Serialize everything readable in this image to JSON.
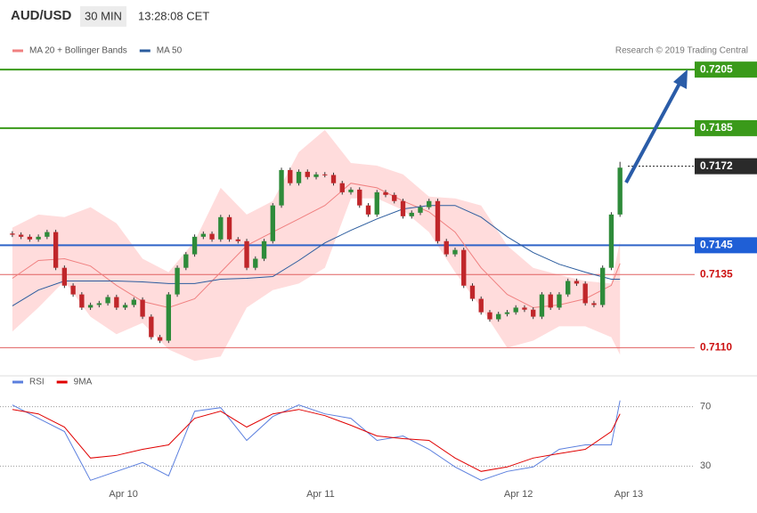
{
  "header": {
    "symbol": "AUD/USD",
    "interval": "30 MIN",
    "time": "13:28:08 CET",
    "credit": "Research © 2019 Trading Central"
  },
  "chart_data": [
    {
      "type": "candlestick",
      "xlim": [
        -0.5,
        78.6
      ],
      "ylim": [
        0.7101,
        0.7209
      ],
      "up_color": "#2e8b3a",
      "down_color": "#c0262a",
      "open": [
        0.7149,
        0.71486,
        0.71479,
        0.7147,
        0.71479,
        0.71495,
        0.71373,
        0.71312,
        0.71282,
        0.71237,
        0.71246,
        0.71252,
        0.71273,
        0.71237,
        0.71246,
        0.71264,
        0.71206,
        0.71136,
        0.71124,
        0.71282,
        0.71373,
        0.71419,
        0.71479,
        0.71489,
        0.7147,
        0.71546,
        0.7147,
        0.71464,
        0.71373,
        0.71404,
        0.71464,
        0.71586,
        0.71707,
        0.71662,
        0.71701,
        0.71683,
        0.71692,
        0.7169,
        0.71662,
        0.71631,
        0.7164,
        0.71586,
        0.71555,
        0.71631,
        0.71622,
        0.71601,
        0.71549,
        0.71561,
        0.7158,
        0.71601,
        0.71464,
        0.71419,
        0.71434,
        0.71312,
        0.71267,
        0.71221,
        0.71197,
        0.71215,
        0.71221,
        0.71237,
        0.7123,
        0.71206,
        0.71282,
        0.71237,
        0.71282,
        0.71328,
        0.71319,
        0.71252,
        0.71246,
        0.71373,
        0.71555
      ],
      "high": [
        0.71498,
        0.71494,
        0.71487,
        0.71487,
        0.71503,
        0.71503,
        0.71381,
        0.7132,
        0.7129,
        0.71254,
        0.7126,
        0.71281,
        0.71281,
        0.71254,
        0.71272,
        0.71272,
        0.71214,
        0.71144,
        0.7129,
        0.71381,
        0.71427,
        0.71487,
        0.71497,
        0.71497,
        0.71554,
        0.71554,
        0.71478,
        0.71472,
        0.71412,
        0.71472,
        0.71594,
        0.71715,
        0.71715,
        0.71709,
        0.71709,
        0.717,
        0.717,
        0.71698,
        0.7167,
        0.71648,
        0.71648,
        0.71594,
        0.71639,
        0.71639,
        0.7163,
        0.71609,
        0.71569,
        0.71588,
        0.71609,
        0.71609,
        0.71472,
        0.71442,
        0.71442,
        0.7132,
        0.71275,
        0.71229,
        0.71223,
        0.71229,
        0.71245,
        0.71245,
        0.71238,
        0.7129,
        0.7129,
        0.7129,
        0.71336,
        0.71336,
        0.71327,
        0.7126,
        0.71381,
        0.71563,
        0.71735
      ],
      "low": [
        0.71478,
        0.71471,
        0.71462,
        0.71462,
        0.71471,
        0.71365,
        0.71304,
        0.71274,
        0.71229,
        0.71229,
        0.71238,
        0.71244,
        0.71229,
        0.71229,
        0.71238,
        0.71198,
        0.71128,
        0.71116,
        0.71116,
        0.71274,
        0.71365,
        0.71411,
        0.71471,
        0.71462,
        0.71462,
        0.71462,
        0.71456,
        0.71365,
        0.71365,
        0.71396,
        0.71456,
        0.71578,
        0.71654,
        0.71654,
        0.71675,
        0.71675,
        0.71682,
        0.71654,
        0.71623,
        0.71623,
        0.71578,
        0.71547,
        0.71547,
        0.71614,
        0.71593,
        0.71541,
        0.71541,
        0.71553,
        0.71572,
        0.71456,
        0.71411,
        0.71411,
        0.71304,
        0.71259,
        0.71213,
        0.71189,
        0.71189,
        0.71207,
        0.71213,
        0.71222,
        0.71198,
        0.71198,
        0.71229,
        0.71229,
        0.71274,
        0.71311,
        0.71244,
        0.71238,
        0.71238,
        0.71365,
        0.71547
      ],
      "close": [
        0.71486,
        0.71479,
        0.7147,
        0.71479,
        0.71495,
        0.71373,
        0.71312,
        0.71282,
        0.71237,
        0.71246,
        0.71252,
        0.71273,
        0.71237,
        0.71246,
        0.71264,
        0.71206,
        0.71136,
        0.71124,
        0.71282,
        0.71373,
        0.71419,
        0.71479,
        0.71489,
        0.7147,
        0.71546,
        0.7147,
        0.71464,
        0.71373,
        0.71404,
        0.71464,
        0.71586,
        0.71707,
        0.71662,
        0.71701,
        0.71683,
        0.71692,
        0.7169,
        0.71662,
        0.71631,
        0.7164,
        0.71586,
        0.71555,
        0.71631,
        0.71622,
        0.71601,
        0.71549,
        0.71561,
        0.7158,
        0.71601,
        0.71464,
        0.71419,
        0.71434,
        0.71312,
        0.71267,
        0.71221,
        0.71197,
        0.71215,
        0.71221,
        0.71237,
        0.7123,
        0.71206,
        0.71282,
        0.71237,
        0.71282,
        0.71328,
        0.71319,
        0.71252,
        0.71246,
        0.71373,
        0.71555,
        0.71715
      ],
      "series": [
        {
          "name": "MA 20 + Bollinger Bands",
          "color": "#f08080",
          "band_color": "#ffdcdc",
          "x": [
            0,
            3,
            6,
            9,
            12,
            15,
            18,
            21,
            24,
            27,
            30,
            33,
            36,
            39,
            42,
            45,
            48,
            51,
            54,
            57,
            60,
            63,
            66,
            69,
            70
          ],
          "values": [
            0.71337,
            0.71398,
            0.71404,
            0.71379,
            0.71313,
            0.71258,
            0.71237,
            0.71267,
            0.71358,
            0.71449,
            0.71495,
            0.7154,
            0.71586,
            0.71662,
            0.71646,
            0.71601,
            0.71564,
            0.71495,
            0.71373,
            0.71282,
            0.71237,
            0.71246,
            0.71267,
            0.71313,
            0.71388
          ],
          "upper": [
            0.7151,
            0.71555,
            0.71546,
            0.7158,
            0.71525,
            0.71404,
            0.71358,
            0.71464,
            0.71646,
            0.71555,
            0.71601,
            0.71768,
            0.71844,
            0.71731,
            0.71722,
            0.71692,
            0.71616,
            0.7161,
            0.71586,
            0.71449,
            0.71373,
            0.71349,
            0.71328,
            0.71319,
            0.71464
          ],
          "lower": [
            0.71155,
            0.71237,
            0.71328,
            0.71206,
            0.71146,
            0.71185,
            0.71094,
            0.71055,
            0.7107,
            0.71237,
            0.71297,
            0.71319,
            0.71373,
            0.7161,
            0.7161,
            0.7157,
            0.71495,
            0.71358,
            0.71237,
            0.711,
            0.71124,
            0.71173,
            0.71173,
            0.71136,
            0.71076
          ]
        },
        {
          "name": "MA 50",
          "color": "#2b5c9e",
          "x": [
            0,
            3,
            6,
            9,
            12,
            15,
            18,
            21,
            24,
            27,
            30,
            33,
            36,
            39,
            42,
            45,
            48,
            51,
            54,
            57,
            60,
            63,
            66,
            69,
            70
          ],
          "values": [
            0.71243,
            0.71297,
            0.71328,
            0.71328,
            0.71328,
            0.71325,
            0.71319,
            0.71319,
            0.71334,
            0.71337,
            0.71343,
            0.71398,
            0.71458,
            0.71501,
            0.7154,
            0.71574,
            0.71586,
            0.71586,
            0.71546,
            0.71479,
            0.71425,
            0.71385,
            0.71358,
            0.71334,
            0.71334
          ]
        }
      ],
      "levels": [
        {
          "value": 0.7205,
          "color": "#3a9a1a",
          "style": "solid",
          "label_bg": "#3a9a1a"
        },
        {
          "value": 0.7185,
          "color": "#3a9a1a",
          "style": "solid",
          "label_bg": "#3a9a1a"
        },
        {
          "value": 0.7172,
          "color": "#222222",
          "style": "dotted",
          "label_bg": "#2a2a2a"
        },
        {
          "value": 0.7145,
          "color": "#2f63c8",
          "style": "solid",
          "label_bg": "#1f5fd6"
        },
        {
          "value": 0.7135,
          "color": "#e06060",
          "style": "solid",
          "label_color": "#cc1111"
        },
        {
          "value": 0.711,
          "label": "0.7110",
          "color": "#e06060",
          "style": "solid",
          "label_color": "#cc1111"
        }
      ]
    },
    {
      "type": "line",
      "xlim": [
        -0.5,
        78.6
      ],
      "ylim": [
        2,
        80
      ],
      "yticks": [
        30,
        70
      ],
      "xticks": [
        {
          "value": 12.8,
          "label": "Apr 10"
        },
        {
          "value": 35.5,
          "label": "Apr 11"
        },
        {
          "value": 58.3,
          "label": "Apr 12"
        },
        {
          "value": 71,
          "label": "Apr 13"
        }
      ],
      "series": [
        {
          "name": "RSI",
          "color": "#5b7fde",
          "x": [
            0,
            3,
            6,
            9,
            12,
            15,
            18,
            21,
            24,
            27,
            30,
            33,
            36,
            39,
            42,
            45,
            48,
            51,
            54,
            57,
            60,
            63,
            66,
            69,
            70
          ],
          "values": [
            71.2,
            62.2,
            53.3,
            20.4,
            26.4,
            32.4,
            23.4,
            67.0,
            69.4,
            47.3,
            63.4,
            71.2,
            65.2,
            62.2,
            47.3,
            50.3,
            41.3,
            29.4,
            20.4,
            26.4,
            29.4,
            41.3,
            44.3,
            44.3,
            74.2
          ]
        },
        {
          "name": "9MA",
          "color": "#e00000",
          "x": [
            0,
            3,
            6,
            9,
            12,
            15,
            18,
            21,
            24,
            27,
            30,
            33,
            36,
            39,
            42,
            45,
            48,
            51,
            54,
            57,
            60,
            63,
            66,
            69,
            70
          ],
          "values": [
            68.2,
            65.2,
            56.3,
            35.4,
            37.2,
            41.3,
            44.3,
            62.2,
            67.0,
            56.3,
            65.2,
            68.2,
            64.0,
            57.5,
            50.3,
            48.5,
            47.3,
            35.4,
            26.4,
            29.4,
            35.4,
            38.4,
            41.3,
            53.3,
            65.2
          ]
        }
      ]
    }
  ]
}
